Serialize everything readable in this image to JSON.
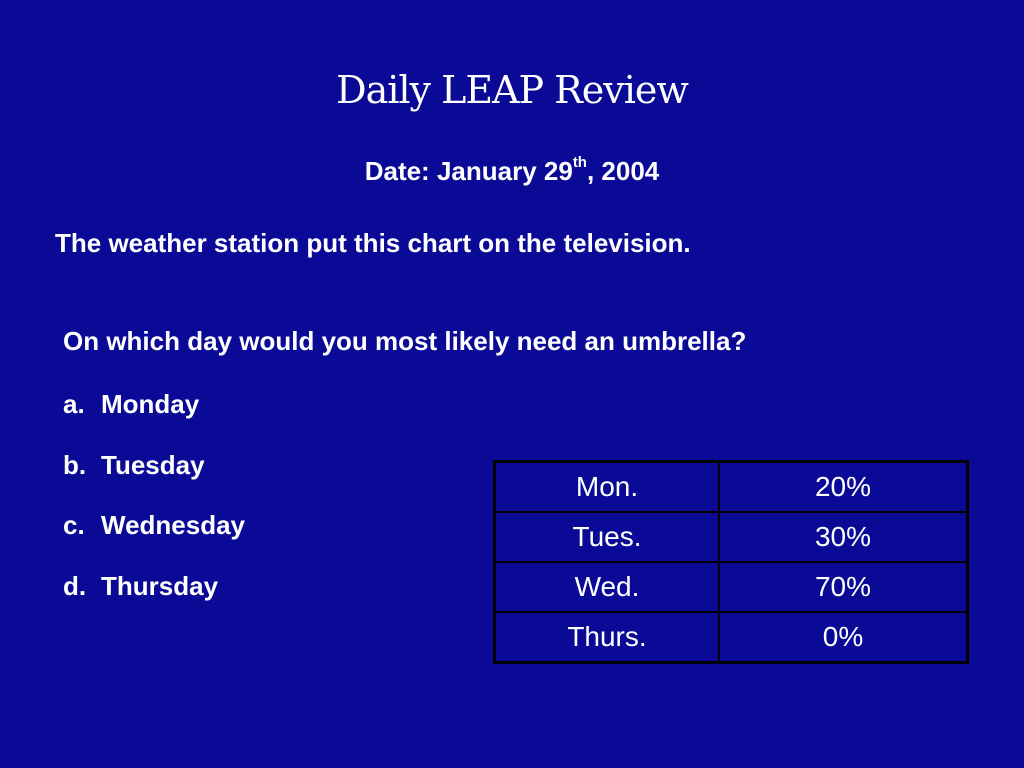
{
  "slide": {
    "title": "Daily LEAP Review",
    "date": {
      "prefix": "Date:  January 29",
      "superscript": "th",
      "suffix": ", 2004"
    },
    "intro": "The weather station put this chart on the television.",
    "question": "On which day would you most likely need an umbrella?",
    "choices": [
      {
        "letter": "a.",
        "text": "Monday"
      },
      {
        "letter": "b.",
        "text": "Tuesday"
      },
      {
        "letter": "c.",
        "text": "Wednesday"
      },
      {
        "letter": "d.",
        "text": "Thursday"
      }
    ]
  },
  "chart_data": {
    "type": "table",
    "rows": [
      {
        "day": "Mon.",
        "chance": "20%"
      },
      {
        "day": "Tues.",
        "chance": "30%"
      },
      {
        "day": "Wed.",
        "chance": "70%"
      },
      {
        "day": "Thurs.",
        "chance": "0%"
      }
    ]
  },
  "colors": {
    "background": "#0a0a96",
    "text": "#ffffff",
    "table_border": "#000000"
  }
}
